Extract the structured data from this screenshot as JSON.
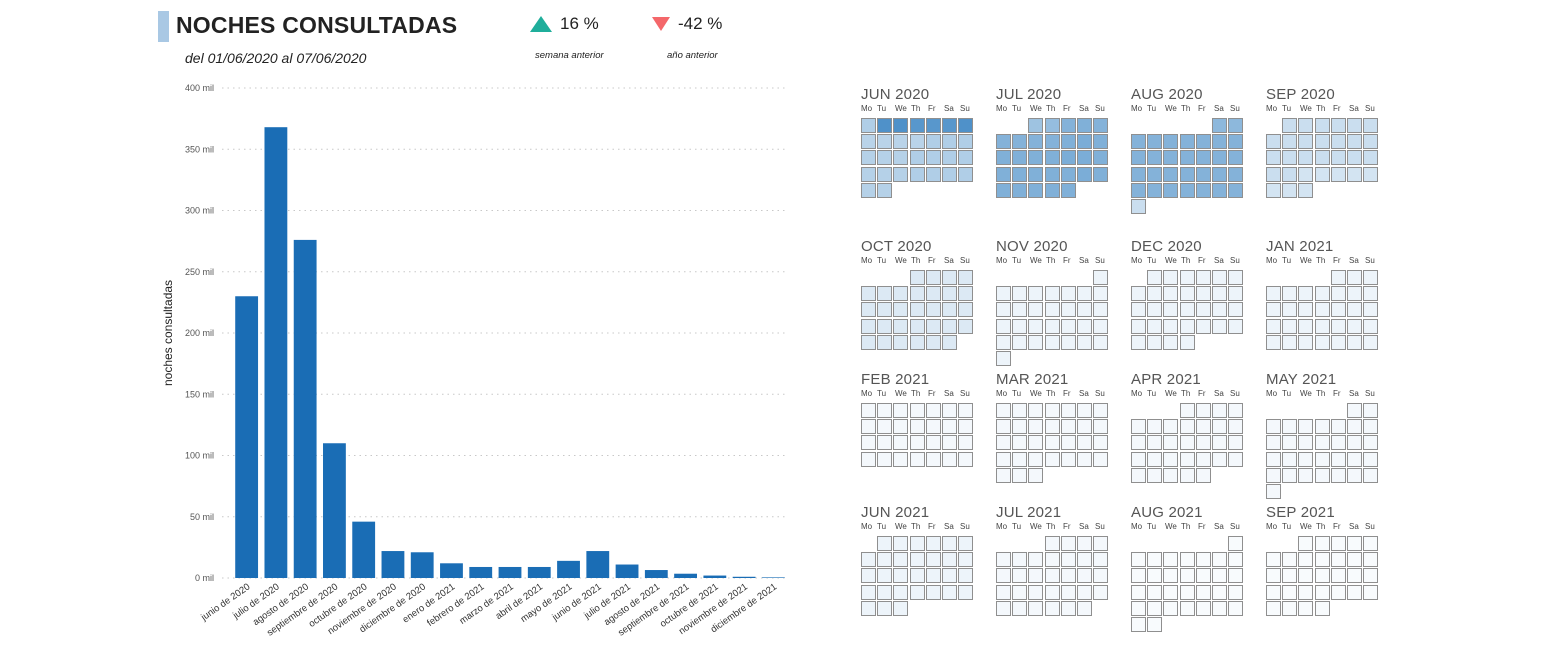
{
  "header": {
    "title": "NOCHES CONSULTADAS",
    "subtitle": "del 01/06/2020 al 07/06/2020"
  },
  "kpis": [
    {
      "value": "16 %",
      "label": "semana anterior",
      "direction": "up",
      "color": "#1fae9b"
    },
    {
      "value": "-42 %",
      "label": "año anterior",
      "direction": "down",
      "color": "#f4676a"
    }
  ],
  "chart_data": {
    "type": "bar",
    "title": "",
    "xlabel": "",
    "ylabel": "noches consultadas",
    "categories": [
      "junio de 2020",
      "julio de 2020",
      "agosto de 2020",
      "septiembre de 2020",
      "octubre de 2020",
      "noviembre de 2020",
      "diciembre de 2020",
      "enero de 2021",
      "febrero de 2021",
      "marzo de 2021",
      "abril de 2021",
      "mayo de 2021",
      "junio de 2021",
      "julio de 2021",
      "agosto de 2021",
      "septiembre de 2021",
      "octubre de 2021",
      "noviembre de 2021",
      "diciembre de 2021"
    ],
    "values": [
      230000,
      368000,
      276000,
      110000,
      46000,
      22000,
      21000,
      12000,
      9000,
      9000,
      9000,
      14000,
      22000,
      11000,
      6500,
      3500,
      2000,
      1000,
      500
    ],
    "yticks": [
      "0 mil",
      "50 mil",
      "100 mil",
      "150 mil",
      "200 mil",
      "250 mil",
      "300 mil",
      "350 mil",
      "400 mil"
    ],
    "ylim": [
      0,
      400000
    ],
    "grid": true,
    "bar_color": "#1a6db5"
  },
  "calendar": {
    "weekday_labels": [
      "Mo",
      "Tu",
      "We",
      "Th",
      "Fr",
      "Sa",
      "Su"
    ],
    "months": [
      {
        "label": "JUN 2020",
        "first_dow": 0,
        "days": 30,
        "color": "#4f91c9",
        "intensities": [
          0.45,
          1.0,
          1.0,
          0.95,
          0.95,
          0.95,
          1.0,
          0.4,
          0.4,
          0.4,
          0.4,
          0.45,
          0.45,
          0.45,
          0.42,
          0.42,
          0.42,
          0.45,
          0.45,
          0.45,
          0.45,
          0.42,
          0.42,
          0.42,
          0.45,
          0.45,
          0.45,
          0.45,
          0.42,
          0.42
        ]
      },
      {
        "label": "JUL 2020",
        "first_dow": 2,
        "days": 31,
        "color": "#4f91c9",
        "intensities": [
          0.55,
          0.6,
          0.7,
          0.72,
          0.7,
          0.7,
          0.7,
          0.7,
          0.7,
          0.72,
          0.75,
          0.72,
          0.72,
          0.72,
          0.72,
          0.72,
          0.75,
          0.75,
          0.72,
          0.72,
          0.72,
          0.72,
          0.72,
          0.72,
          0.75,
          0.72,
          0.72,
          0.72,
          0.72,
          0.72,
          0.72
        ]
      },
      {
        "label": "AUG 2020",
        "first_dow": 5,
        "days": 31,
        "color": "#4f91c9",
        "intensities": [
          0.65,
          0.65,
          0.7,
          0.7,
          0.7,
          0.7,
          0.7,
          0.7,
          0.7,
          0.7,
          0.7,
          0.7,
          0.7,
          0.7,
          0.7,
          0.7,
          0.7,
          0.7,
          0.7,
          0.7,
          0.7,
          0.7,
          0.7,
          0.7,
          0.7,
          0.7,
          0.7,
          0.7,
          0.7,
          0.7,
          0.3
        ]
      },
      {
        "label": "SEP 2020",
        "first_dow": 1,
        "days": 30,
        "color": "#4f91c9",
        "intensities": [
          0.3,
          0.3,
          0.3,
          0.3,
          0.3,
          0.3,
          0.3,
          0.3,
          0.3,
          0.3,
          0.3,
          0.3,
          0.3,
          0.3,
          0.3,
          0.3,
          0.3,
          0.3,
          0.3,
          0.3,
          0.3,
          0.3,
          0.25,
          0.25,
          0.25,
          0.25,
          0.25,
          0.25,
          0.25,
          0.25
        ]
      },
      {
        "label": "OCT 2020",
        "first_dow": 3,
        "days": 31,
        "color": "#4f91c9",
        "intensities": [
          0.2,
          0.2,
          0.2,
          0.2,
          0.2,
          0.2,
          0.2,
          0.2,
          0.2,
          0.2,
          0.2,
          0.2,
          0.2,
          0.2,
          0.2,
          0.2,
          0.2,
          0.2,
          0.2,
          0.2,
          0.2,
          0.2,
          0.2,
          0.2,
          0.2,
          0.2,
          0.2,
          0.2,
          0.2,
          0.2,
          0.2
        ]
      },
      {
        "label": "NOV 2020",
        "first_dow": 6,
        "days": 30,
        "color": "#4f91c9",
        "intensities": [
          0.1,
          0.1,
          0.1,
          0.1,
          0.1,
          0.1,
          0.1,
          0.1,
          0.1,
          0.1,
          0.1,
          0.1,
          0.1,
          0.1,
          0.1,
          0.1,
          0.1,
          0.1,
          0.1,
          0.1,
          0.1,
          0.1,
          0.1,
          0.1,
          0.1,
          0.1,
          0.1,
          0.1,
          0.1,
          0.1
        ]
      },
      {
        "label": "DEC 2020",
        "first_dow": 1,
        "days": 31,
        "color": "#4f91c9",
        "intensities": [
          0.1,
          0.1,
          0.1,
          0.1,
          0.1,
          0.1,
          0.1,
          0.1,
          0.1,
          0.1,
          0.1,
          0.1,
          0.1,
          0.1,
          0.1,
          0.1,
          0.1,
          0.1,
          0.1,
          0.1,
          0.1,
          0.1,
          0.1,
          0.1,
          0.1,
          0.1,
          0.1,
          0.1,
          0.1,
          0.1,
          0.1
        ]
      },
      {
        "label": "JAN 2021",
        "first_dow": 4,
        "days": 31,
        "color": "#4f91c9",
        "intensities": [
          0.1,
          0.1,
          0.1,
          0.1,
          0.1,
          0.1,
          0.1,
          0.1,
          0.1,
          0.1,
          0.1,
          0.1,
          0.1,
          0.1,
          0.1,
          0.1,
          0.1,
          0.1,
          0.1,
          0.1,
          0.1,
          0.1,
          0.1,
          0.1,
          0.1,
          0.1,
          0.1,
          0.1,
          0.1,
          0.1,
          0.1
        ]
      },
      {
        "label": "FEB 2021",
        "first_dow": 0,
        "days": 28,
        "color": "#4f91c9",
        "intensities": [
          0.06,
          0.06,
          0.06,
          0.06,
          0.06,
          0.06,
          0.06,
          0.06,
          0.06,
          0.06,
          0.06,
          0.06,
          0.06,
          0.06,
          0.06,
          0.06,
          0.06,
          0.06,
          0.06,
          0.06,
          0.06,
          0.06,
          0.06,
          0.06,
          0.06,
          0.06,
          0.06,
          0.06
        ]
      },
      {
        "label": "MAR 2021",
        "first_dow": 0,
        "days": 31,
        "color": "#4f91c9",
        "intensities": [
          0.06,
          0.06,
          0.06,
          0.06,
          0.06,
          0.06,
          0.06,
          0.06,
          0.06,
          0.06,
          0.06,
          0.06,
          0.06,
          0.06,
          0.06,
          0.06,
          0.06,
          0.06,
          0.06,
          0.06,
          0.06,
          0.06,
          0.06,
          0.06,
          0.06,
          0.06,
          0.06,
          0.06,
          0.06,
          0.06,
          0.06
        ]
      },
      {
        "label": "APR 2021",
        "first_dow": 3,
        "days": 30,
        "color": "#4f91c9",
        "intensities": [
          0.06,
          0.06,
          0.06,
          0.06,
          0.06,
          0.06,
          0.06,
          0.06,
          0.06,
          0.06,
          0.06,
          0.06,
          0.06,
          0.06,
          0.06,
          0.06,
          0.06,
          0.06,
          0.06,
          0.06,
          0.06,
          0.06,
          0.06,
          0.06,
          0.06,
          0.06,
          0.06,
          0.06,
          0.06,
          0.06
        ]
      },
      {
        "label": "MAY 2021",
        "first_dow": 5,
        "days": 31,
        "color": "#4f91c9",
        "intensities": [
          0.06,
          0.06,
          0.06,
          0.06,
          0.06,
          0.06,
          0.06,
          0.06,
          0.06,
          0.06,
          0.06,
          0.06,
          0.06,
          0.06,
          0.06,
          0.06,
          0.06,
          0.06,
          0.06,
          0.06,
          0.06,
          0.06,
          0.06,
          0.06,
          0.06,
          0.06,
          0.06,
          0.06,
          0.06,
          0.06,
          0.06
        ]
      },
      {
        "label": "JUN 2021",
        "first_dow": 1,
        "days": 30,
        "color": "#4f91c9",
        "intensities": [
          0.1,
          0.1,
          0.1,
          0.1,
          0.1,
          0.1,
          0.1,
          0.1,
          0.1,
          0.1,
          0.1,
          0.1,
          0.1,
          0.1,
          0.1,
          0.1,
          0.1,
          0.1,
          0.1,
          0.1,
          0.1,
          0.1,
          0.1,
          0.1,
          0.1,
          0.1,
          0.1,
          0.1,
          0.1,
          0.1
        ]
      },
      {
        "label": "JUL 2021",
        "first_dow": 3,
        "days": 31,
        "color": "#4f91c9",
        "intensities": [
          0.06,
          0.06,
          0.06,
          0.06,
          0.06,
          0.06,
          0.06,
          0.06,
          0.06,
          0.06,
          0.06,
          0.06,
          0.06,
          0.06,
          0.06,
          0.06,
          0.06,
          0.06,
          0.06,
          0.06,
          0.06,
          0.06,
          0.06,
          0.06,
          0.06,
          0.06,
          0.06,
          0.06,
          0.06,
          0.06,
          0.06
        ]
      },
      {
        "label": "AUG 2021",
        "first_dow": 6,
        "days": 31,
        "color": "#4f91c9",
        "intensities": [
          0.04,
          0.04,
          0.04,
          0.04,
          0.04,
          0.04,
          0.04,
          0.04,
          0.04,
          0.04,
          0.04,
          0.04,
          0.04,
          0.04,
          0.04,
          0.04,
          0.04,
          0.04,
          0.04,
          0.04,
          0.04,
          0.04,
          0.04,
          0.04,
          0.04,
          0.04,
          0.04,
          0.04,
          0.04,
          0.04,
          0.04
        ]
      },
      {
        "label": "SEP 2021",
        "first_dow": 2,
        "days": 30,
        "color": "#4f91c9",
        "intensities": [
          0.04,
          0.04,
          0.04,
          0.04,
          0.04,
          0.04,
          0.04,
          0.04,
          0.04,
          0.04,
          0.04,
          0.04,
          0.04,
          0.04,
          0.04,
          0.04,
          0.04,
          0.04,
          0.04,
          0.04,
          0.04,
          0.04,
          0.04,
          0.04,
          0.04,
          0.04,
          0.04,
          0.04,
          0.04,
          0.04
        ]
      }
    ]
  }
}
